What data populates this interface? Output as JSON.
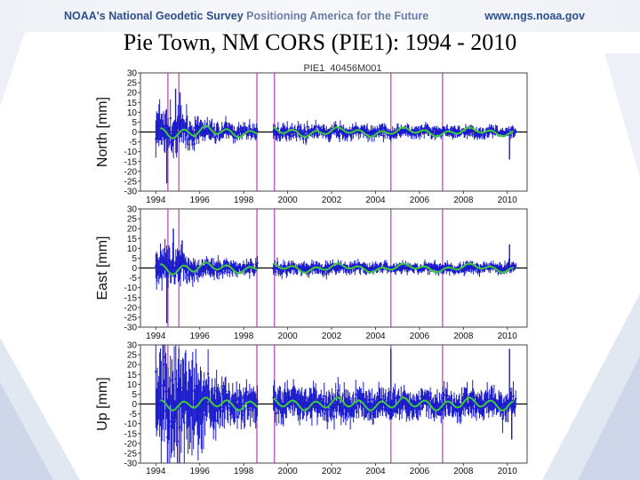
{
  "header": {
    "brand_noaa": "NOAA's",
    "brand_ngs": "National Geodetic Survey",
    "brand_tagline": "Positioning America for the Future",
    "url": "www.ngs.noaa.gov"
  },
  "page_title": "Pie Town, NM CORS (PIE1): 1994 - 2010",
  "colors": {
    "data_blue": "#1a1acc",
    "model_green": "#3ec93e",
    "event_magenta": "#b030b0",
    "brand_navy": "#2d4f8f"
  },
  "chart_data": [
    {
      "type": "scatter",
      "title": "PIE1_40456M001",
      "xlabel": "",
      "ylabel": "North   [mm]",
      "ylim": [
        -30,
        30
      ],
      "xlim": [
        1993.3,
        2010.9
      ],
      "yticks": [
        "30",
        "25",
        "20",
        "15",
        "10",
        "5",
        "0",
        "-5",
        "-10",
        "-15",
        "-20",
        "-25",
        "-30"
      ],
      "xticks": [
        "1994",
        "1996",
        "1998",
        "2000",
        "2002",
        "2004",
        "2006",
        "2008",
        "2010"
      ],
      "event_lines": [
        1994.55,
        1995.05,
        1998.6,
        1999.4,
        2004.7,
        2007.05
      ],
      "gaps": [
        [
          1998.65,
          1999.35
        ]
      ],
      "series": [
        {
          "name": "observations",
          "envelope": [
            [
              1994,
              12
            ],
            [
              1995,
              10
            ],
            [
              1996,
              6
            ],
            [
              1998,
              4
            ],
            [
              2000,
              4
            ],
            [
              2004,
              3.5
            ],
            [
              2010,
              3
            ]
          ],
          "spikes": [
            [
              1994.5,
              -26
            ],
            [
              1994.9,
              22
            ],
            [
              1995.1,
              20
            ],
            [
              2010.1,
              -14
            ]
          ]
        },
        {
          "name": "model",
          "trend": 0
        }
      ]
    },
    {
      "type": "scatter",
      "title": "",
      "xlabel": "",
      "ylabel": "East   [mm]",
      "ylim": [
        -30,
        30
      ],
      "xlim": [
        1993.3,
        2010.9
      ],
      "yticks": [
        "30",
        "25",
        "20",
        "15",
        "10",
        "5",
        "0",
        "-5",
        "-10",
        "-15",
        "-20",
        "-25",
        "-30"
      ],
      "xticks": [
        "1994",
        "1996",
        "1998",
        "2000",
        "2002",
        "2004",
        "2006",
        "2008",
        "2010"
      ],
      "event_lines": [
        1994.55,
        1995.05,
        1998.6,
        1999.4,
        2004.7,
        2007.05
      ],
      "gaps": [
        [
          1998.65,
          1999.35
        ]
      ],
      "series": [
        {
          "name": "observations",
          "envelope": [
            [
              1994,
              11
            ],
            [
              1995,
              9
            ],
            [
              1996,
              5
            ],
            [
              1998,
              4
            ],
            [
              2000,
              3.5
            ],
            [
              2004,
              3
            ],
            [
              2010,
              3
            ]
          ],
          "spikes": [
            [
              1994.5,
              -28
            ],
            [
              1994.8,
              20
            ],
            [
              1995.2,
              14
            ],
            [
              2010.1,
              12
            ]
          ]
        },
        {
          "name": "model",
          "trend": 0
        }
      ]
    },
    {
      "type": "scatter",
      "title": "",
      "xlabel": "",
      "ylabel": "Up   [mm]",
      "ylim": [
        -30,
        30
      ],
      "xlim": [
        1993.3,
        2010.9
      ],
      "yticks": [
        "30",
        "25",
        "20",
        "15",
        "10",
        "5",
        "0",
        "-5",
        "-10",
        "-15",
        "-20",
        "-25",
        "-30"
      ],
      "xticks": [
        "1994",
        "1996",
        "1998",
        "2000",
        "2002",
        "2004",
        "2006",
        "2008",
        "2010"
      ],
      "event_lines": [
        1994.55,
        1995.05,
        1998.6,
        1999.4,
        2004.7,
        2007.05
      ],
      "gaps": [
        [
          1998.65,
          1999.35
        ]
      ],
      "series": [
        {
          "name": "observations",
          "envelope": [
            [
              1994,
              30
            ],
            [
              1995,
              30
            ],
            [
              1996,
              24
            ],
            [
              1997,
              12
            ],
            [
              1998,
              10
            ],
            [
              2000,
              9
            ],
            [
              2004,
              8
            ],
            [
              2010,
              8
            ]
          ],
          "spikes": [
            [
              2004.7,
              28
            ],
            [
              2010.1,
              28
            ],
            [
              2010.2,
              -18
            ]
          ]
        },
        {
          "name": "model",
          "trend": 0
        }
      ]
    }
  ]
}
